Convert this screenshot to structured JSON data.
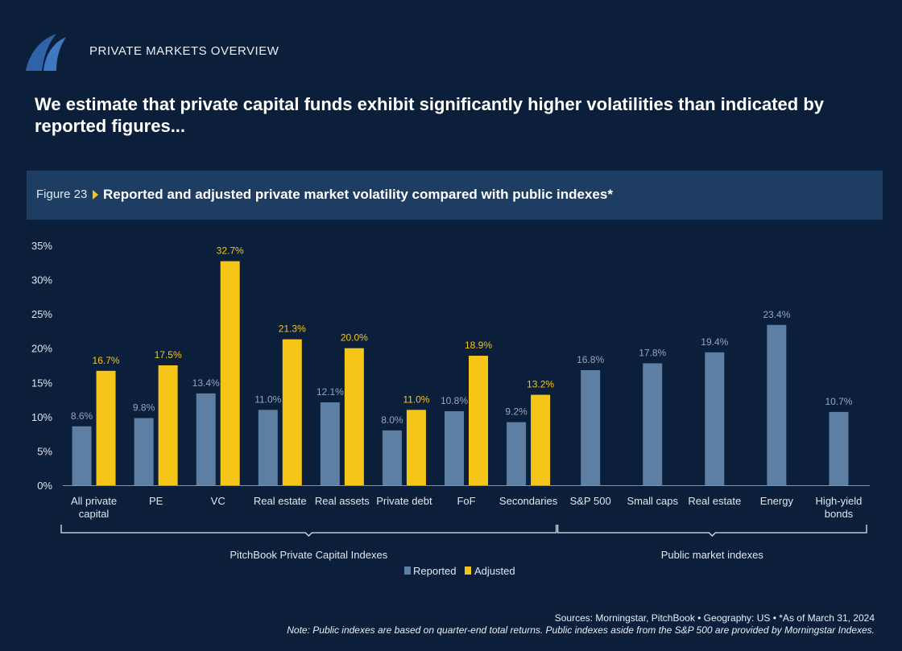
{
  "header": {
    "section_label": "PRIVATE MARKETS OVERVIEW",
    "headline": "We estimate that private capital funds exhibit significantly higher volatilities than indicated by reported figures..."
  },
  "figure": {
    "number": "Figure 23",
    "title": "Reported and adjusted private market volatility compared with public indexes*"
  },
  "colors": {
    "reported": "#5d7fa3",
    "adjusted": "#f5c518",
    "axis_text": "#dfe7f1",
    "reported_label": "#8fa7c2"
  },
  "chart_data": {
    "type": "bar",
    "ylim": [
      0,
      35
    ],
    "yticks": [
      "0%",
      "5%",
      "10%",
      "15%",
      "20%",
      "25%",
      "30%",
      "35%"
    ],
    "categories": [
      "All private capital",
      "PE",
      "VC",
      "Real estate",
      "Real assets",
      "Private debt",
      "FoF",
      "Secondaries",
      "S&P 500",
      "Small caps",
      "Real estate",
      "Energy",
      "High-yield bonds"
    ],
    "category_lines": [
      [
        "All private",
        "capital"
      ],
      [
        "PE"
      ],
      [
        "VC"
      ],
      [
        "Real estate"
      ],
      [
        "Real assets"
      ],
      [
        "Private debt"
      ],
      [
        "FoF"
      ],
      [
        "Secondaries"
      ],
      [
        "S&P 500"
      ],
      [
        "Small caps"
      ],
      [
        "Real estate"
      ],
      [
        "Energy"
      ],
      [
        "High-yield",
        "bonds"
      ]
    ],
    "series": [
      {
        "name": "Reported",
        "values": [
          8.6,
          9.8,
          13.4,
          11.0,
          12.1,
          8.0,
          10.8,
          9.2,
          16.8,
          17.8,
          19.4,
          23.4,
          10.7
        ],
        "labels": [
          "8.6%",
          "9.8%",
          "13.4%",
          "11.0%",
          "12.1%",
          "8.0%",
          "10.8%",
          "9.2%",
          "16.8%",
          "17.8%",
          "19.4%",
          "23.4%",
          "10.7%"
        ]
      },
      {
        "name": "Adjusted",
        "values": [
          16.7,
          17.5,
          32.7,
          21.3,
          20.0,
          11.0,
          18.9,
          13.2,
          null,
          null,
          null,
          null,
          null
        ],
        "labels": [
          "16.7%",
          "17.5%",
          "32.7%",
          "21.3%",
          "20.0%",
          "11.0%",
          "18.9%",
          "13.2%",
          null,
          null,
          null,
          null,
          null
        ]
      }
    ],
    "groups": [
      {
        "label": "PitchBook Private Capital Indexes",
        "from": 0,
        "to": 7
      },
      {
        "label": "Public market indexes",
        "from": 8,
        "to": 12
      }
    ],
    "legend": [
      "Reported",
      "Adjusted"
    ]
  },
  "footer": {
    "sources": "Sources: Morningstar, PitchBook  •  Geography: US  •  *As of March 31, 2024",
    "note": "Note: Public indexes are based on quarter-end total returns. Public indexes aside from the S&P 500 are provided by Morningstar Indexes."
  }
}
